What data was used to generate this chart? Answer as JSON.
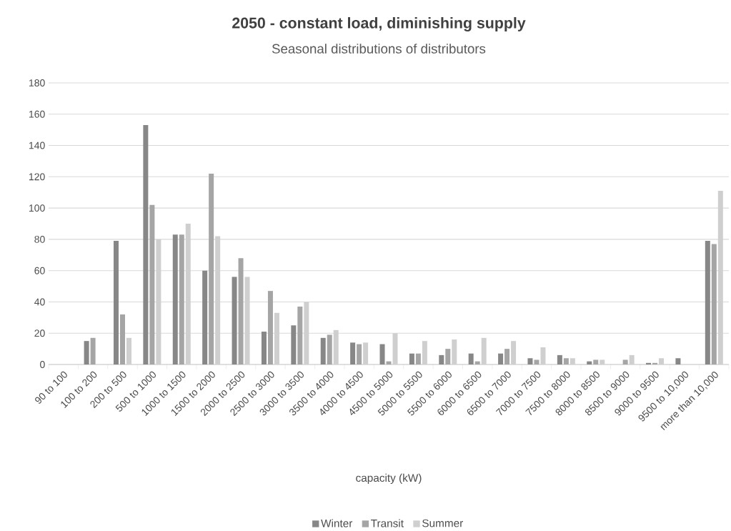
{
  "chart_data": {
    "type": "bar",
    "title": "2050 -  constant load, diminishing supply",
    "subtitle": "Seasonal distributions of distributors",
    "xlabel": "capacity (kW)",
    "categories": [
      "90 to 100",
      "100 to 200",
      "200 to 500",
      "500 to 1000",
      "1000 to 1500",
      "1500 to 2000",
      "2000 to 2500",
      "2500 to 3000",
      "3000 to 3500",
      "3500 to 4000",
      "4000 to 4500",
      "4500 to 5000",
      "5000 to 5500",
      "5500 to 6000",
      "6000 to 6500",
      "6500 to 7000",
      "7000 to 7500",
      "7500 to 8000",
      "8000 to 8500",
      "8500 to 9000",
      "9000 to 9500",
      "9500 to 10,000",
      "more than 10,000"
    ],
    "series": [
      {
        "name": "Winter",
        "color": "#878787",
        "values": [
          0,
          15,
          79,
          153,
          83,
          60,
          56,
          21,
          25,
          17,
          14,
          13,
          7,
          6,
          7,
          7,
          4,
          6,
          2,
          0,
          1,
          4,
          79
        ]
      },
      {
        "name": "Transit",
        "color": "#a5a5a5",
        "values": [
          0,
          17,
          32,
          102,
          83,
          122,
          68,
          47,
          37,
          19,
          13,
          2,
          7,
          10,
          2,
          10,
          3,
          4,
          3,
          3,
          1,
          0,
          77
        ]
      },
      {
        "name": "Summer",
        "color": "#cfcfcf",
        "values": [
          0,
          0,
          17,
          80,
          90,
          82,
          56,
          33,
          40,
          22,
          14,
          20,
          15,
          16,
          17,
          15,
          11,
          4,
          3,
          6,
          4,
          0,
          111
        ]
      }
    ],
    "ylim": [
      0,
      180
    ],
    "yticks": [
      0,
      20,
      40,
      60,
      80,
      100,
      120,
      140,
      160,
      180
    ],
    "grid": "y",
    "legend": "bottom"
  }
}
